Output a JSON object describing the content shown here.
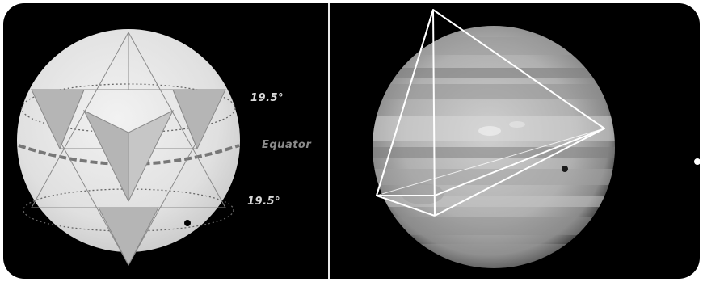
{
  "labels": {
    "upper_angle": "19.5°",
    "equator": "Equator",
    "lower_angle": "19.5°"
  },
  "colors": {
    "sphere_fill": "#e4e4e4",
    "facet_fill": "#b9b9b9",
    "background": "#000000",
    "tetra_stroke": "#ffffff"
  }
}
